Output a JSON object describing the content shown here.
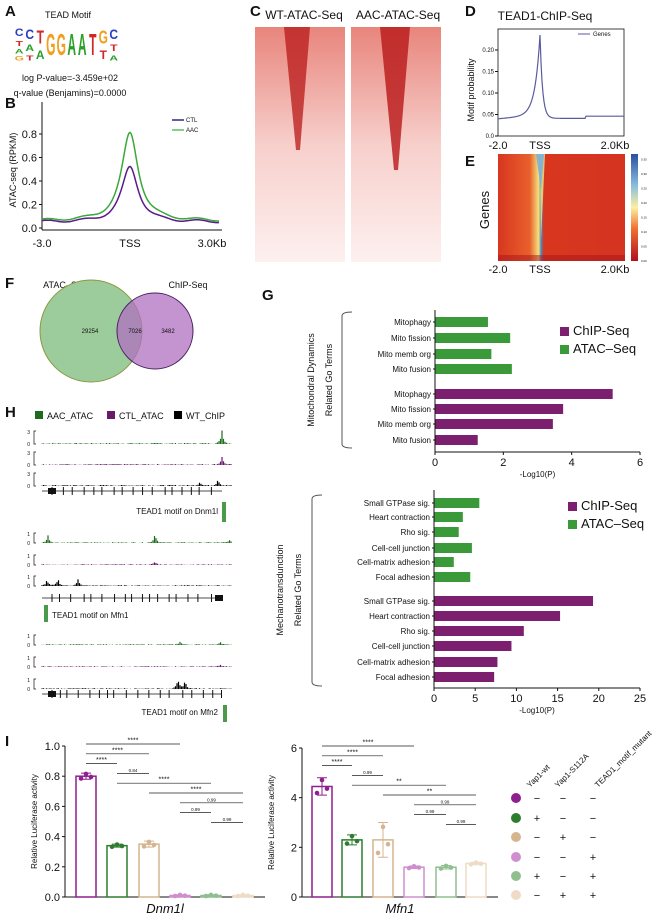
{
  "panels": {
    "A": "A",
    "B": "B",
    "C": "C",
    "D": "D",
    "E": "E",
    "F": "F",
    "G": "G",
    "H": "H",
    "I": "I"
  },
  "colors": {
    "green": "#3a9a3a",
    "purple": "#7b1f6e",
    "dark_green": "#1e6b1e",
    "dark_purple": "#6a1a6a",
    "navy": "#2a2a80",
    "tan": "#d6b48f"
  },
  "panel_a": {
    "title": "TEAD Motif",
    "logo": [
      [
        [
          "C",
          "#2a3fc0"
        ],
        [
          "T",
          "#d0282a"
        ],
        [
          "A",
          "#2aa02a"
        ],
        [
          "G",
          "#f0a020"
        ]
      ],
      [
        [
          "C",
          "#2a3fc0"
        ],
        [
          "A",
          "#2aa02a"
        ],
        [
          "T",
          "#d0282a"
        ]
      ],
      [
        [
          "T",
          "#d0282a"
        ],
        [
          "A",
          "#2aa02a"
        ]
      ],
      [
        [
          "G",
          "#f0a020"
        ]
      ],
      [
        [
          "G",
          "#f0a020"
        ]
      ],
      [
        [
          "A",
          "#2aa02a"
        ]
      ],
      [
        [
          "A",
          "#2aa02a"
        ]
      ],
      [
        [
          "T",
          "#d0282a"
        ]
      ],
      [
        [
          "G",
          "#f0a020"
        ],
        [
          "T",
          "#d0282a"
        ]
      ],
      [
        [
          "C",
          "#2a3fc0"
        ],
        [
          "T",
          "#d0282a"
        ],
        [
          "A",
          "#2aa02a"
        ]
      ]
    ],
    "pvalue": "log P-value=-3.459e+02",
    "qvalue": "q-value (Benjamins)=0.0000"
  },
  "panel_b": {
    "ylabel": "ATAC-seq (RPKM)",
    "yticks": [
      "0.0",
      "0.2",
      "0.4",
      "0.6",
      "0.8"
    ],
    "xticks": [
      "-3.0",
      "TSS",
      "3.0Kb"
    ],
    "legend": [
      "CTL",
      "AAC"
    ]
  },
  "panel_c": {
    "titles": [
      "WT-ATAC-Seq",
      "AAC-ATAC-Seq"
    ]
  },
  "panel_d": {
    "title": "TEAD1-ChIP-Seq",
    "ylabel": "Motif probability",
    "yticks": [
      "0.0",
      "0.05",
      "0.10",
      "0.15",
      "0.20"
    ],
    "xticks": [
      "-2.0",
      "TSS",
      "2.0Kb"
    ],
    "legend": "Genes"
  },
  "panel_e": {
    "ylabel": "Genes",
    "xticks": [
      "-2.0",
      "TSS",
      "2.0Kb"
    ],
    "colorbar_ticks": [
      "0.00",
      "0.05",
      "0.10",
      "0.15",
      "0.20",
      "0.25",
      "0.30",
      "0.35"
    ]
  },
  "panel_f": {
    "sets": [
      "ATAC–Seq",
      "ChIP-Seq"
    ],
    "atac_only": "29254",
    "overlap": "7026",
    "chip_only": "3482"
  },
  "panel_h": {
    "legend": [
      "AAC_ATAC",
      "CTL_ATAC",
      "WT_ChIP"
    ],
    "loci": [
      {
        "scale": "3",
        "zero": "0",
        "motif": "TEAD1 motif on Dnm1l"
      },
      {
        "scale": "1",
        "zero": "0",
        "motif": "TEAD1 motif on Mfn1"
      },
      {
        "scale": "1",
        "zero": "0",
        "motif": "TEAD1 motif on Mfn2"
      }
    ]
  },
  "chart_data": [
    {
      "type": "line",
      "panel": "B",
      "ylabel": "ATAC-seq (RPKM)",
      "xticks": [
        "-3.0",
        "TSS",
        "3.0Kb"
      ],
      "ylim": [
        0,
        0.9
      ],
      "series": [
        {
          "name": "CTL",
          "peak": 0.52,
          "baseline": 0.05
        },
        {
          "name": "AAC",
          "peak": 0.81,
          "baseline": 0.06
        }
      ]
    },
    {
      "type": "line",
      "panel": "D",
      "title": "TEAD1-ChIP-Seq",
      "ylabel": "Motif probability",
      "ylim": [
        0,
        0.24
      ],
      "series": [
        {
          "name": "Genes",
          "peak": 0.235,
          "left_baseline": 0.04,
          "right_baseline": 0.045
        }
      ]
    },
    {
      "type": "bar",
      "panel": "G-mito",
      "orientation": "horizontal",
      "xlabel": "-Log10(P)",
      "xlim": [
        0,
        6
      ],
      "xticks": [
        "0",
        "2",
        "4",
        "6"
      ],
      "group_label": [
        "Mitochondral Dynamics",
        "Related Go Terms"
      ],
      "categories": [
        "Mitophagy",
        "Mito fission",
        "Mito memb org",
        "Mito fusion"
      ],
      "series": [
        {
          "name": "ChIP-Seq",
          "values": [
            5.2,
            3.75,
            3.45,
            1.25
          ]
        },
        {
          "name": "ATAC–Seq",
          "values": [
            1.55,
            2.2,
            1.65,
            2.25
          ]
        }
      ]
    },
    {
      "type": "bar",
      "panel": "G-mechano",
      "orientation": "horizontal",
      "xlabel": "-Log10(P)",
      "xlim": [
        0,
        25
      ],
      "xticks": [
        "0",
        "5",
        "10",
        "15",
        "20",
        "25"
      ],
      "group_label": [
        "Mechanotransdunction",
        "Related Go Terms"
      ],
      "categories": [
        "Small GTPase sig.",
        "Heart contraction",
        "Rho sig.",
        "Cell-cell junction",
        "Cell-matrix adhesion",
        "Focal adhesion"
      ],
      "series": [
        {
          "name": "ChIP-Seq",
          "values": [
            19.3,
            15.3,
            10.9,
            9.4,
            7.7,
            7.3
          ]
        },
        {
          "name": "ATAC–Seq",
          "values": [
            5.5,
            3.5,
            3.0,
            4.6,
            2.4,
            4.4
          ]
        }
      ]
    },
    {
      "type": "bar",
      "panel": "I-Dnm1l",
      "xlabel": "Dnm1l",
      "ylabel": "Relative Luciferase activity",
      "ylim": [
        0,
        1.0
      ],
      "yticks": [
        "0.0",
        "0.2",
        "0.4",
        "0.6",
        "0.8",
        "1.0"
      ],
      "values": [
        0.8,
        0.34,
        0.35,
        0.01,
        0.01,
        0.01
      ],
      "errors": [
        0.02,
        0.01,
        0.02,
        0.005,
        0.005,
        0.005
      ],
      "comparisons": [
        [
          0,
          3,
          "****"
        ],
        [
          0,
          2,
          "****"
        ],
        [
          0,
          1,
          "****"
        ],
        [
          1,
          2,
          "0.84"
        ],
        [
          1,
          4,
          "****"
        ],
        [
          2,
          5,
          "****"
        ],
        [
          3,
          5,
          "0.99"
        ],
        [
          3,
          4,
          "0.99"
        ],
        [
          4,
          5,
          "0.99"
        ]
      ]
    },
    {
      "type": "bar",
      "panel": "I-Mfn1",
      "xlabel": "Mfn1",
      "ylabel": "Relative Luciferase activity",
      "ylim": [
        0,
        6
      ],
      "yticks": [
        "0",
        "2",
        "4",
        "6"
      ],
      "values": [
        4.45,
        2.3,
        2.3,
        1.2,
        1.2,
        1.35
      ],
      "errors": [
        0.35,
        0.2,
        0.7,
        0.05,
        0.07,
        0.05
      ],
      "comparisons": [
        [
          0,
          3,
          "****"
        ],
        [
          0,
          2,
          "****"
        ],
        [
          0,
          1,
          "****"
        ],
        [
          1,
          2,
          "0.99"
        ],
        [
          1,
          4,
          "**"
        ],
        [
          2,
          5,
          "**"
        ],
        [
          3,
          5,
          "0.99"
        ],
        [
          3,
          4,
          "0.99"
        ],
        [
          4,
          5,
          "0.99"
        ]
      ]
    }
  ],
  "panel_i_legend": {
    "headers": [
      "Yap1-wt",
      "Yap1-S112A",
      "TEAD1_motif_mutant"
    ],
    "group_colors": [
      "#8e1f8e",
      "#2e7d2e",
      "#d6b48f",
      "#cf8fcf",
      "#8fbf8f",
      "#eedcc6"
    ],
    "rows": [
      [
        "−",
        "−",
        "−"
      ],
      [
        "+",
        "−",
        "−"
      ],
      [
        "−",
        "+",
        "−"
      ],
      [
        "−",
        "−",
        "+"
      ],
      [
        "+",
        "−",
        "+"
      ],
      [
        "−",
        "+",
        "+"
      ]
    ]
  }
}
